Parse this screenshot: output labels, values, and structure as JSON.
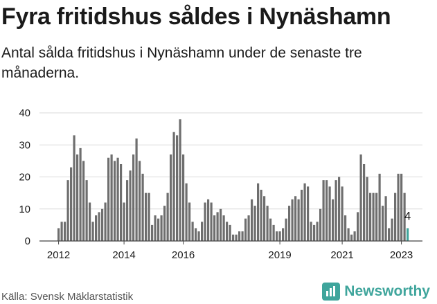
{
  "header": {
    "title": "Fyra fritidshus såldes i Nynäshamn",
    "subtitle": "Antal sålda fritidshus i Nynäshamn under de senaste tre månaderna."
  },
  "footer": {
    "source": "Källa: Svensk Mäklarstatistik",
    "brand": "Newsworthy"
  },
  "colors": {
    "bar": "#6e6e6e",
    "highlight": "#3fa59c",
    "grid": "#d9d9d9",
    "text": "#1a1a1a",
    "brand": "#3fa59c"
  },
  "icons": {
    "brand": "newsworthy-logo-icon"
  },
  "chart_data": {
    "type": "bar",
    "title": "Fyra fritidshus såldes i Nynäshamn",
    "subtitle": "Antal sålda fritidshus i Nynäshamn under de senaste tre månaderna.",
    "xlabel": "",
    "ylabel": "",
    "ylim": [
      0,
      40
    ],
    "yticks": [
      0,
      10,
      20,
      30,
      40
    ],
    "xticks": [
      "2012",
      "2014",
      "2016",
      "2019",
      "2021",
      "2023"
    ],
    "xtick_bar_index": [
      0,
      21,
      40,
      71,
      91,
      110
    ],
    "grid": true,
    "highlight_index": 112,
    "highlight_label": "4",
    "values": [
      4,
      6,
      6,
      19,
      23,
      33,
      27,
      29,
      25,
      19,
      12,
      6,
      8,
      9,
      10,
      12,
      26,
      27,
      25,
      26,
      24,
      12,
      19,
      22,
      27,
      32,
      25,
      21,
      15,
      15,
      5,
      8,
      7,
      8,
      11,
      15,
      27,
      34,
      33,
      38,
      27,
      18,
      12,
      6,
      4,
      3,
      6,
      12,
      13,
      12,
      8,
      9,
      10,
      8,
      6,
      5,
      2,
      2,
      3,
      3,
      7,
      8,
      13,
      11,
      18,
      16,
      14,
      11,
      7,
      5,
      3,
      3,
      4,
      7,
      11,
      13,
      14,
      13,
      16,
      18,
      17,
      6,
      5,
      6,
      10,
      19,
      19,
      17,
      13,
      19,
      20,
      17,
      8,
      4,
      2,
      3,
      9,
      27,
      24,
      20,
      15,
      15,
      15,
      21,
      11,
      14,
      4,
      7,
      15,
      21,
      21,
      15,
      4
    ]
  }
}
